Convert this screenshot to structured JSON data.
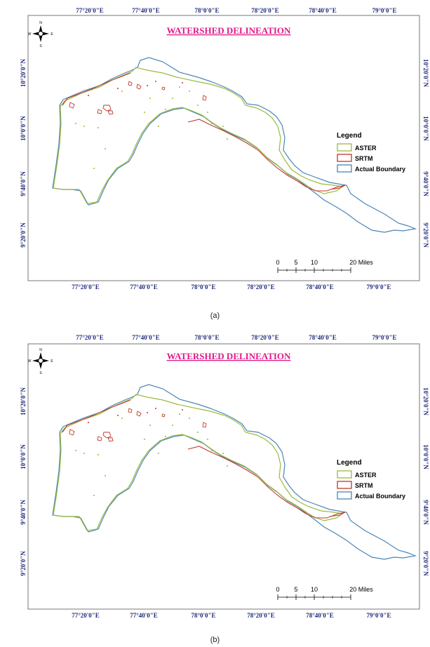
{
  "panels": [
    {
      "caption": "(a)",
      "title": "WATERSHED DELINEATION",
      "top_ticks": [
        "77°20'0\"E",
        "77°40'0\"E",
        "78°0'0\"E",
        "78°20'0\"E",
        "78°40'0\"E",
        "79°0'0\"E"
      ],
      "bottom_ticks": [
        "77°20'0\"E",
        "77°40'0\"E",
        "78°0'0\"E",
        "78°20'0\"E",
        "78°40'0\"E",
        "79°0'0\"E"
      ],
      "left_ticks": [
        "10°20'0\"N",
        "10°0'0\"N",
        "9°40'0\"N",
        "9°20'0\"N"
      ],
      "right_ticks": [
        "10°20'0\"N",
        "10°0'0\"N",
        "9°40'0\"N",
        "9°20'0\"N"
      ],
      "legend": {
        "title": "Legend",
        "items": [
          {
            "label": "ASTER",
            "color": "#9bbb3b"
          },
          {
            "label": "SRTM",
            "color": "#c0392b"
          },
          {
            "label": "Actual Boundary",
            "color": "#4a86b8"
          }
        ]
      },
      "scale": {
        "labels": [
          "0",
          "5",
          "10",
          "20 Miles"
        ]
      },
      "compass": {
        "n": "N",
        "s": "S",
        "e": "E",
        "w": "W"
      }
    },
    {
      "caption": "(b)",
      "title": "WATERSHED DELINEATION",
      "top_ticks": [
        "77°20'0\"E",
        "77°40'0\"E",
        "78°0'0\"E",
        "78°20'0\"E",
        "78°40'0\"E",
        "79°0'0\"E"
      ],
      "bottom_ticks": [
        "77°20'0\"E",
        "77°40'0\"E",
        "78°0'0\"E",
        "78°20'0\"E",
        "78°40'0\"E",
        "79°0'0\"E"
      ],
      "left_ticks": [
        "10°20'0\"N",
        "10°0'0\"N",
        "9°40'0\"N",
        "9°20'0\"N"
      ],
      "right_ticks": [
        "10°20'0\"N",
        "10°0'0\"N",
        "9°40'0\"N",
        "9°20'0\"N"
      ],
      "legend": {
        "title": "Legend",
        "items": [
          {
            "label": "ASTER",
            "color": "#9bbb3b"
          },
          {
            "label": "SRTM",
            "color": "#c0392b"
          },
          {
            "label": "Actual Boundary",
            "color": "#4a86b8"
          }
        ]
      },
      "scale": {
        "labels": [
          "0",
          "5",
          "10",
          "20 Miles"
        ]
      },
      "compass": {
        "n": "N",
        "s": "S",
        "e": "E",
        "w": "W"
      }
    }
  ]
}
